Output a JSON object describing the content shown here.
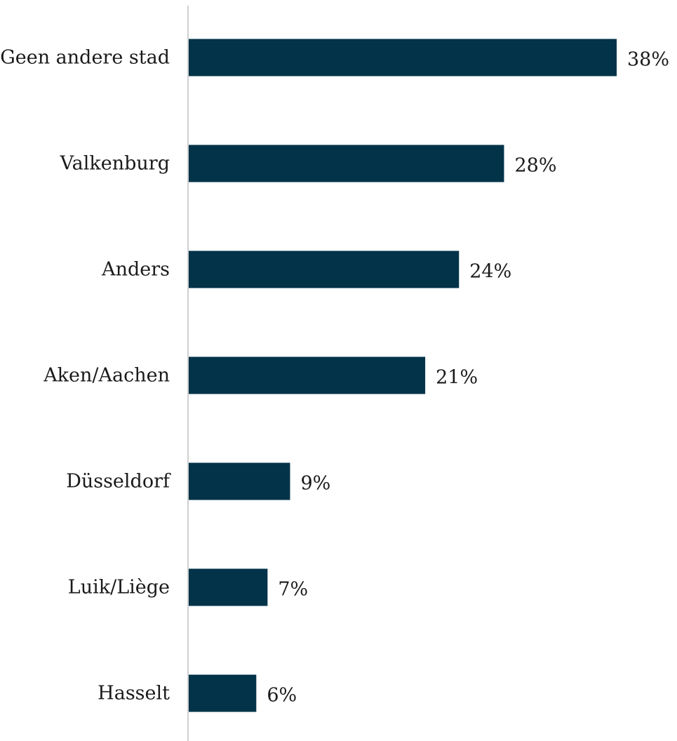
{
  "chart_data": {
    "type": "bar",
    "orientation": "horizontal",
    "categories": [
      "Geen andere stad",
      "Valkenburg",
      "Anders",
      "Aken/Aachen",
      "Düsseldorf",
      "Luik/Liège",
      "Hasselt"
    ],
    "values": [
      38,
      28,
      24,
      21,
      9,
      7,
      6
    ],
    "value_labels": [
      "38%",
      "28%",
      "24%",
      "21%",
      "9%",
      "7%",
      "6%"
    ],
    "unit": "%",
    "title": "",
    "xlabel": "",
    "ylabel": "",
    "xlim": [
      0,
      38
    ],
    "grid": false,
    "legend": "none",
    "colors": {
      "bar": "#023349",
      "axis": "#d0d0d0",
      "text": "#1a1a1a"
    }
  }
}
